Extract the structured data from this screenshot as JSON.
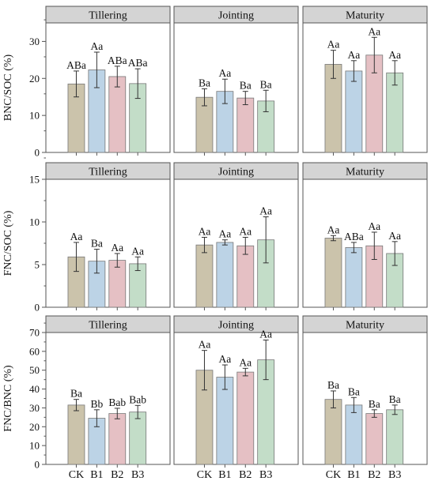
{
  "colors": {
    "CK": "#cbc3ab",
    "B1": "#bcd3e6",
    "B2": "#e5c0c4",
    "B3": "#c3ddc8",
    "strip": "#d4d4d4",
    "frame": "#555555",
    "error_bar": "#333333"
  },
  "chart_data": {
    "type": "bar",
    "layout": "3x3 facet grid",
    "grid": false,
    "legend": "none",
    "categories": [
      "CK",
      "B1",
      "B2",
      "B3"
    ],
    "stages": [
      "Tillering",
      "Jointing",
      "Maturity"
    ],
    "rows": [
      {
        "ylabel": "BNC/SOC (%)",
        "ylim": [
          0,
          35
        ],
        "yticks": [
          "0",
          "10",
          "20",
          "30"
        ],
        "panels": [
          {
            "stage": "Tillering",
            "values": [
              18.5,
              22.3,
              20.5,
              18.6
            ],
            "errors": [
              3.5,
              4.8,
              2.8,
              4.0
            ],
            "labels": [
              "ABa",
              "Aa",
              "ABa",
              "ABa"
            ]
          },
          {
            "stage": "Jointing",
            "values": [
              14.9,
              16.5,
              14.7,
              13.9
            ],
            "errors": [
              2.3,
              3.3,
              1.8,
              2.9
            ],
            "labels": [
              "Ba",
              "Aa",
              "Ba",
              "Ba"
            ]
          },
          {
            "stage": "Maturity",
            "values": [
              23.8,
              22.0,
              26.3,
              21.5
            ],
            "errors": [
              3.8,
              2.8,
              4.8,
              3.3
            ],
            "labels": [
              "Aa",
              "Aa",
              "Aa",
              "Aa"
            ]
          }
        ]
      },
      {
        "ylabel": "FNC/SOC (%)",
        "ylim": [
          0,
          15
        ],
        "yticks": [
          "0",
          "5",
          "10",
          "15"
        ],
        "panels": [
          {
            "stage": "Tillering",
            "values": [
              5.9,
              5.4,
              5.5,
              5.1
            ],
            "errors": [
              1.7,
              1.4,
              0.8,
              0.8
            ],
            "labels": [
              "Aa",
              "Ba",
              "Aa",
              "Aa"
            ]
          },
          {
            "stage": "Jointing",
            "values": [
              7.3,
              7.6,
              7.2,
              7.9
            ],
            "errors": [
              0.9,
              0.3,
              1.0,
              2.7
            ],
            "labels": [
              "Aa",
              "Aa",
              "Aa",
              "Aa"
            ]
          },
          {
            "stage": "Maturity",
            "values": [
              8.1,
              7.0,
              7.2,
              6.3
            ],
            "errors": [
              0.3,
              0.6,
              1.6,
              1.4
            ],
            "labels": [
              "Aa",
              "ABa",
              "Aa",
              "Aa"
            ]
          }
        ]
      },
      {
        "ylabel": "FNC/BNC (%)",
        "ylim": [
          0,
          70
        ],
        "yticks": [
          "0",
          "10",
          "20",
          "30",
          "40",
          "50",
          "60",
          "70"
        ],
        "panels": [
          {
            "stage": "Tillering",
            "values": [
              31.5,
              24.5,
              27.0,
              27.8
            ],
            "errors": [
              3.0,
              4.5,
              2.8,
              3.5
            ],
            "labels": [
              "Ba",
              "Bb",
              "Bab",
              "Bab"
            ]
          },
          {
            "stage": "Jointing",
            "values": [
              50.0,
              46.3,
              49.0,
              55.5
            ],
            "errors": [
              10.5,
              6.5,
              2.0,
              10.5
            ],
            "labels": [
              "Aa",
              "Aa",
              "Aa",
              "Aa"
            ]
          },
          {
            "stage": "Maturity",
            "values": [
              34.5,
              31.5,
              27.0,
              29.0
            ],
            "errors": [
              4.5,
              4.0,
              2.0,
              2.5
            ],
            "labels": [
              "Ba",
              "Ba",
              "Ba",
              "Ba"
            ]
          }
        ]
      }
    ]
  }
}
